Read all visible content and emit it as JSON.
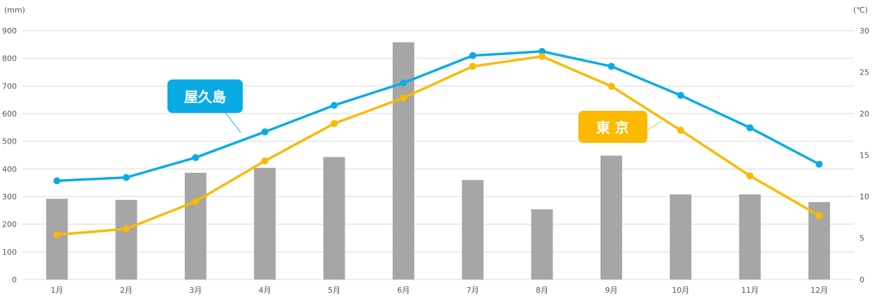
{
  "chart_data": {
    "type": "bar+line",
    "categories": [
      "1月",
      "2月",
      "3月",
      "4月",
      "5月",
      "6月",
      "7月",
      "8月",
      "9月",
      "10月",
      "11月",
      "12月"
    ],
    "bars": {
      "axis": "left",
      "values": [
        292,
        288,
        386,
        404,
        443,
        858,
        360,
        254,
        448,
        308,
        308,
        280
      ],
      "color": "#a6a6a6"
    },
    "series": [
      {
        "name": "屋久島",
        "axis": "right",
        "values": [
          11.9,
          12.3,
          14.7,
          17.8,
          21.0,
          23.7,
          27.0,
          27.5,
          25.7,
          22.2,
          18.3,
          13.9
        ],
        "color": "#0aabe5"
      },
      {
        "name": "東 京",
        "axis": "right",
        "values": [
          5.4,
          6.1,
          9.4,
          14.3,
          18.8,
          21.9,
          25.7,
          26.9,
          23.3,
          18.0,
          12.5,
          7.7
        ],
        "color": "#fbb900"
      }
    ],
    "left_axis": {
      "unit": "(mm)",
      "ylim": [
        0,
        900
      ],
      "ticks": [
        0,
        100,
        200,
        300,
        400,
        500,
        600,
        700,
        800,
        900
      ]
    },
    "right_axis": {
      "unit": "(℃)",
      "ylim": [
        0,
        30
      ],
      "ticks": [
        0,
        5,
        10,
        15,
        20,
        25,
        30
      ]
    },
    "grid": true,
    "gridColor": "#d9d9d9"
  }
}
